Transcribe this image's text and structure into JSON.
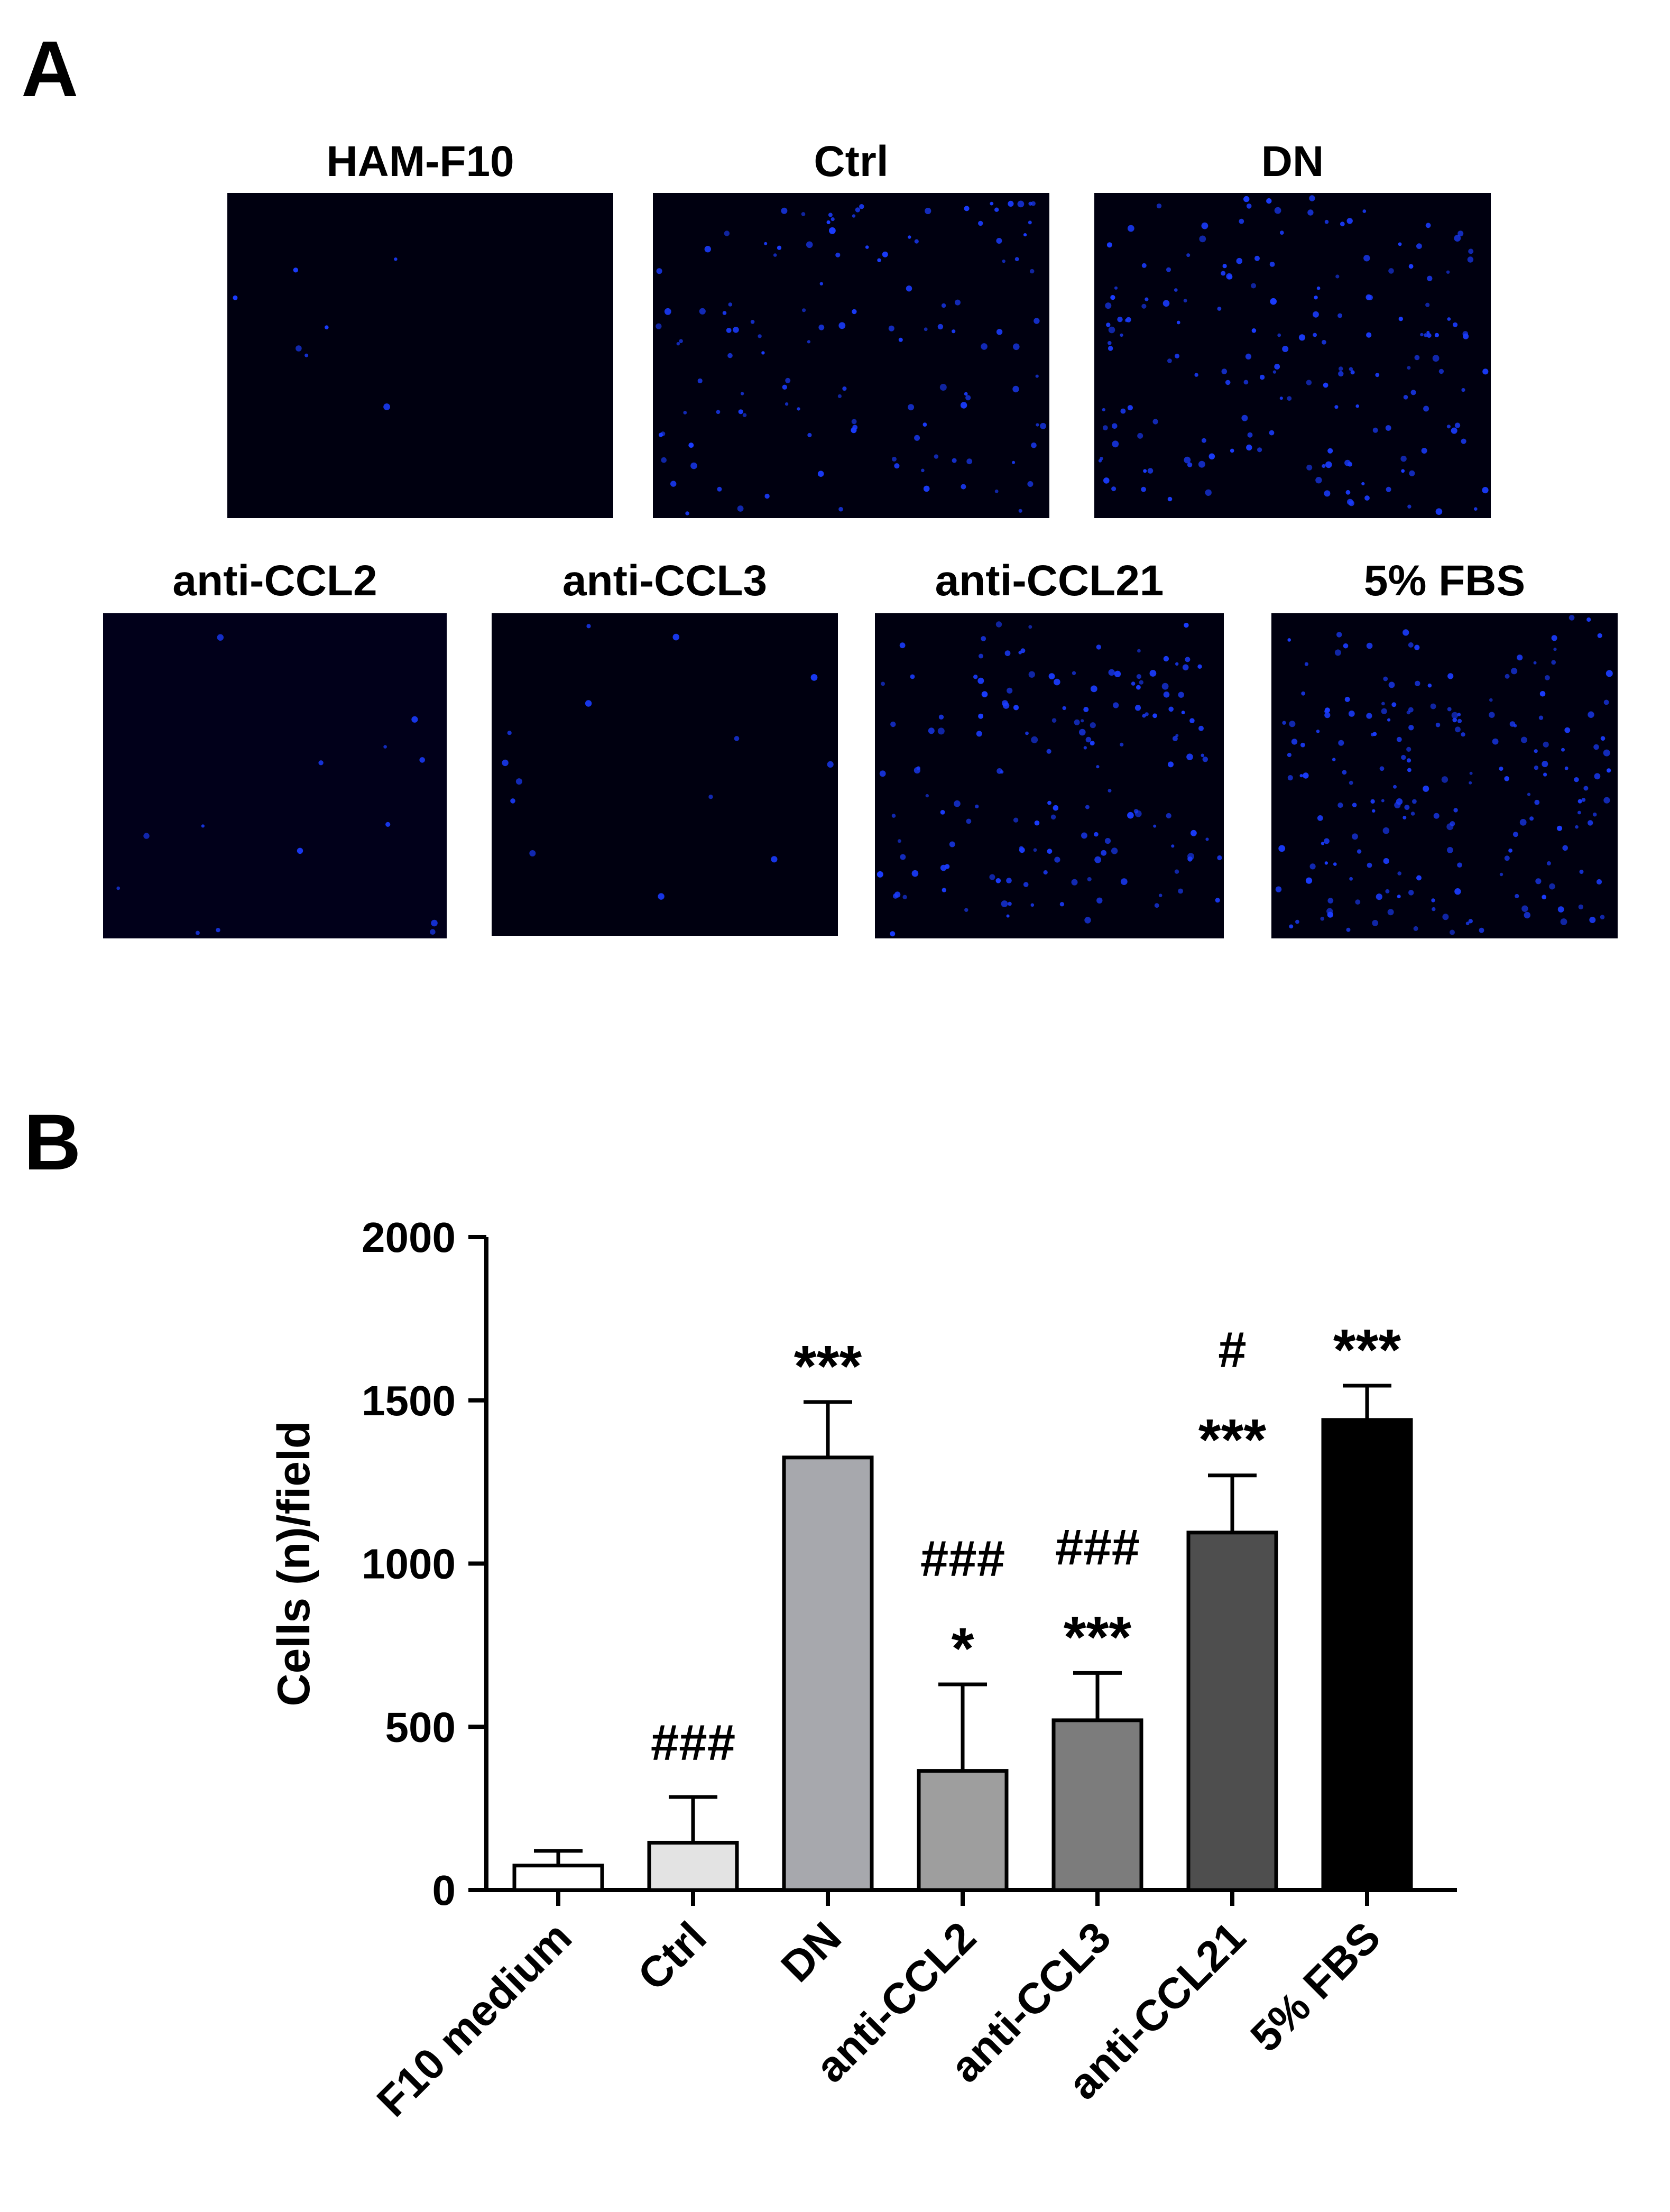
{
  "panel_a": {
    "letter": "A",
    "images": [
      {
        "title": "HAM-F10",
        "cells": 7
      },
      {
        "title": "Ctrl",
        "cells": 120
      },
      {
        "title": "DN",
        "cells": 170
      },
      {
        "title": "anti-CCL2",
        "cells": 14
      },
      {
        "title": "anti-CCL3",
        "cells": 14
      },
      {
        "title": "anti-CCL21",
        "cells": 150
      },
      {
        "title": "5% FBS",
        "cells": 190
      }
    ],
    "colors": {
      "background": "#00000f",
      "nuclei": "#1a3cff"
    }
  },
  "panel_b": {
    "letter": "B"
  },
  "chart_data": {
    "type": "bar",
    "ylabel": "Cells (n)/field",
    "ylim": [
      0,
      2000
    ],
    "yticks": [
      0,
      500,
      1000,
      1500,
      2000
    ],
    "categories": [
      "F10 medium",
      "Ctrl",
      "DN",
      "anti-CCL2",
      "anti-CCL3",
      "anti-CCL21",
      "5% FBS"
    ],
    "values": [
      75,
      145,
      1325,
      365,
      520,
      1095,
      1440
    ],
    "errors": [
      45,
      140,
      170,
      265,
      145,
      175,
      105
    ],
    "colors": [
      "#ffffff",
      "#e3e3e3",
      "#a7a8ad",
      "#9e9e9e",
      "#7c7c7c",
      "#4e4e4e",
      "#000000"
    ],
    "annotations": [
      {
        "category": "Ctrl",
        "lines": [
          "###"
        ]
      },
      {
        "category": "DN",
        "lines": [
          "***"
        ]
      },
      {
        "category": "anti-CCL2",
        "lines": [
          "###",
          "*"
        ]
      },
      {
        "category": "anti-CCL3",
        "lines": [
          "###",
          "***"
        ]
      },
      {
        "category": "anti-CCL21",
        "lines": [
          "#",
          "***"
        ]
      },
      {
        "category": "5% FBS",
        "lines": [
          "***"
        ]
      }
    ]
  }
}
